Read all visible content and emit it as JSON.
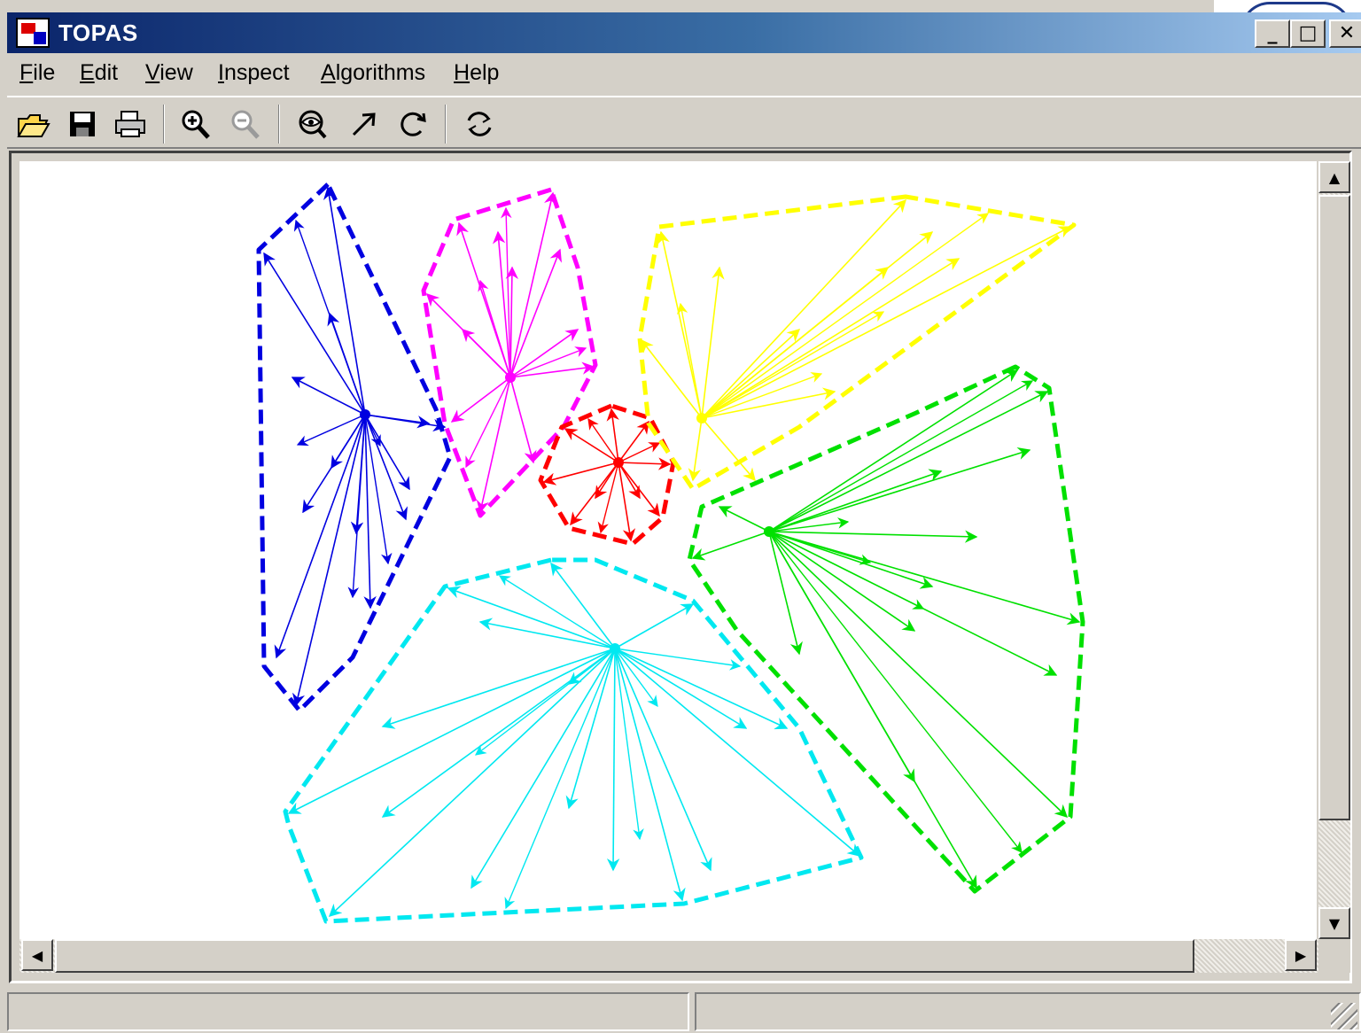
{
  "window": {
    "title": "TOPAS",
    "controls": {
      "minimize": "_",
      "maximize": "□",
      "close": "✕"
    }
  },
  "menu": {
    "items": [
      {
        "label": "File",
        "mnemonic": "F"
      },
      {
        "label": "Edit",
        "mnemonic": "E"
      },
      {
        "label": "View",
        "mnemonic": "V"
      },
      {
        "label": "Inspect",
        "mnemonic": "I"
      },
      {
        "label": "Algorithms",
        "mnemonic": "A"
      },
      {
        "label": "Help",
        "mnemonic": "H"
      }
    ]
  },
  "toolbar": {
    "tools": [
      {
        "icon": "open-folder-icon",
        "enabled": true
      },
      {
        "icon": "save-disk-icon",
        "enabled": true
      },
      {
        "icon": "print-icon",
        "enabled": true
      },
      {
        "icon": "zoom-in-icon",
        "enabled": true
      },
      {
        "icon": "zoom-out-icon",
        "enabled": false
      },
      {
        "icon": "inspect-eye-icon",
        "enabled": true
      },
      {
        "icon": "arrow-icon",
        "enabled": true
      },
      {
        "icon": "rotate-icon",
        "enabled": true
      },
      {
        "icon": "refresh-icon",
        "enabled": true
      }
    ]
  },
  "clusters": [
    {
      "name": "blue",
      "color": "#0000e0"
    },
    {
      "name": "magenta",
      "color": "#ff00ff"
    },
    {
      "name": "red",
      "color": "#ff0000"
    },
    {
      "name": "yellow",
      "color": "#ffff00"
    },
    {
      "name": "green",
      "color": "#00e000"
    },
    {
      "name": "cyan",
      "color": "#00e8f0"
    }
  ],
  "statusbar": {
    "left": "",
    "right": ""
  }
}
